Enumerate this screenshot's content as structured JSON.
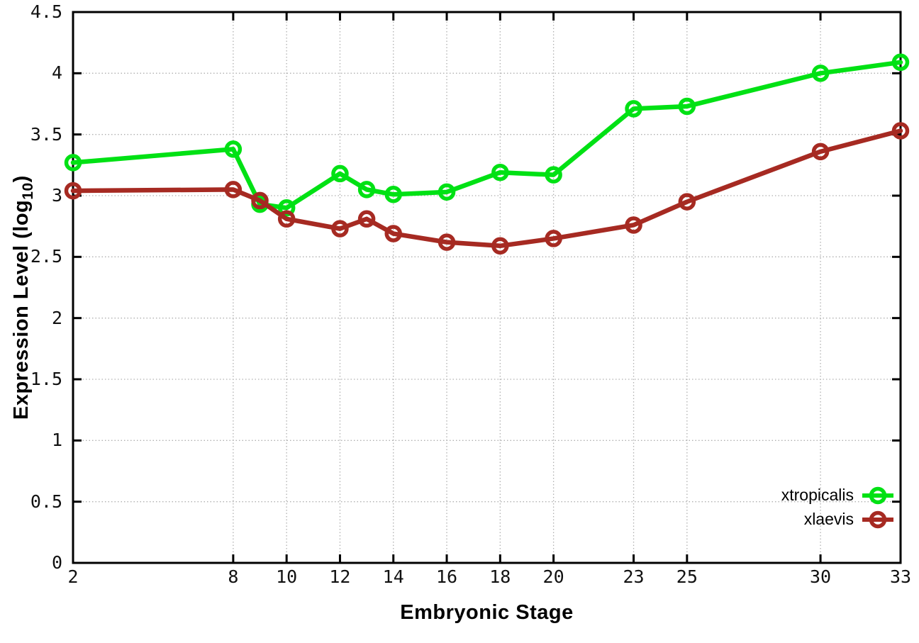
{
  "chart_data": {
    "type": "line",
    "title": "",
    "xlabel": "Embryonic Stage",
    "ylabel": "Expression Level (log10)",
    "ylabel_parts": {
      "prefix": "Expression Level (log",
      "sub": "10",
      "suffix": ")"
    },
    "x": [
      2,
      8,
      9,
      10,
      12,
      13,
      14,
      16,
      18,
      20,
      23,
      25,
      30,
      33
    ],
    "series": [
      {
        "name": "xtropicalis",
        "color": "#00e114",
        "values": [
          3.27,
          3.38,
          2.93,
          2.9,
          3.18,
          3.05,
          3.01,
          3.03,
          3.19,
          3.17,
          3.71,
          3.73,
          4.0,
          4.09
        ]
      },
      {
        "name": "xlaevis",
        "color": "#a62a22",
        "values": [
          3.04,
          3.05,
          2.96,
          2.81,
          2.73,
          2.81,
          2.69,
          2.62,
          2.59,
          2.65,
          2.76,
          2.95,
          3.36,
          3.53
        ]
      }
    ],
    "xlim": [
      2,
      33
    ],
    "ylim": [
      0,
      4.5
    ],
    "x_ticks": [
      2,
      8,
      10,
      12,
      14,
      16,
      18,
      20,
      23,
      25,
      30,
      33
    ],
    "y_ticks": [
      0,
      0.5,
      1,
      1.5,
      2,
      2.5,
      3,
      3.5,
      4,
      4.5
    ],
    "y_tick_labels": [
      "0",
      "0.5",
      "1",
      "1.5",
      "2",
      "2.5",
      "3",
      "3.5",
      "4",
      "4.5"
    ],
    "grid": true,
    "legend_position": "bottom-right",
    "marker": "open-circle"
  },
  "colors": {
    "background": "#ffffff",
    "axis": "#000000",
    "grid": "#b0b0b0",
    "tick_text": "#111111"
  }
}
